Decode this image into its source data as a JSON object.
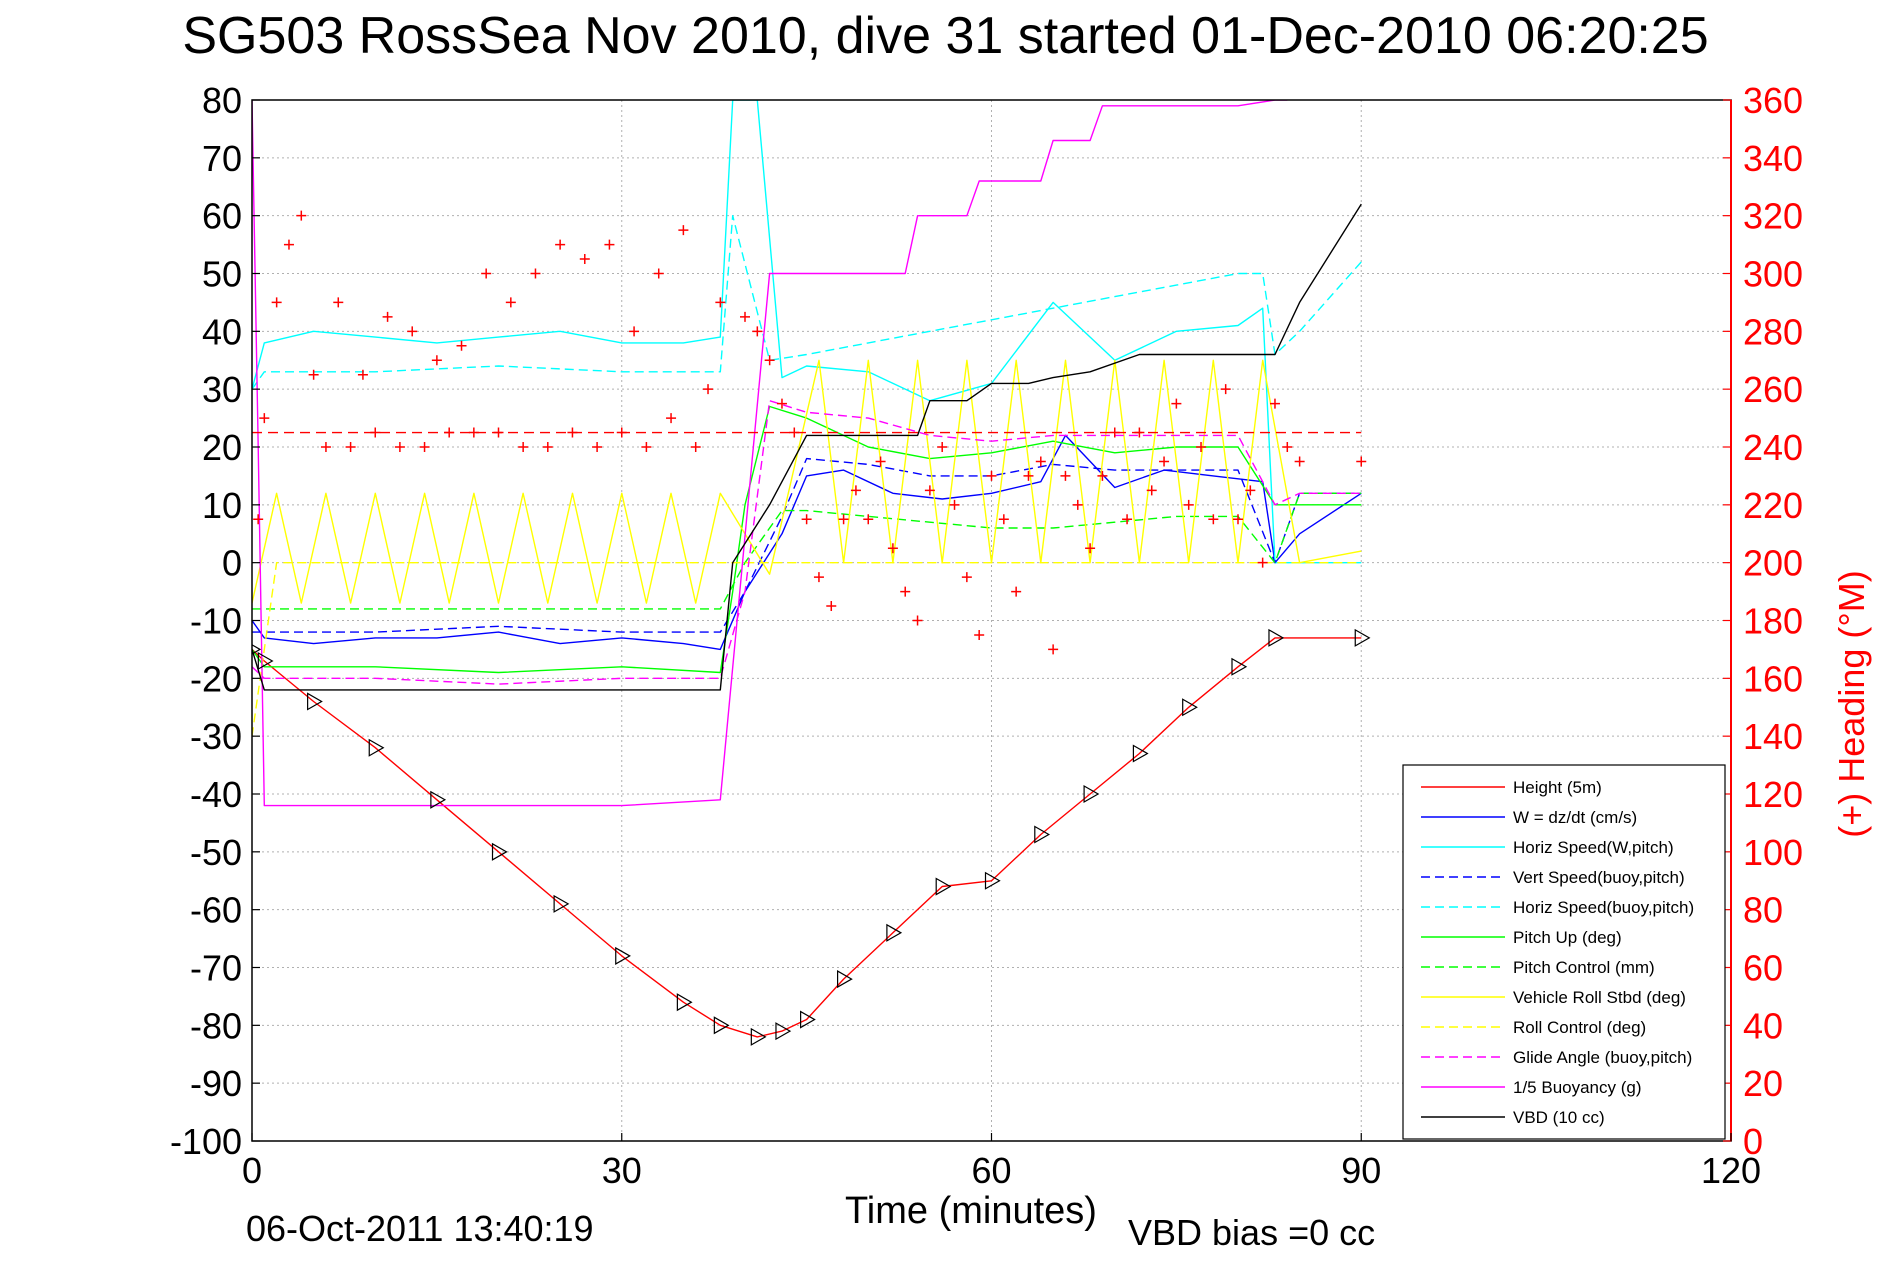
{
  "title": "SG503 RossSea Nov 2010, dive 31 started 01-Dec-2010 06:20:25",
  "footer": {
    "timestamp": "06-Oct-2011 13:40:19",
    "vbd_bias": "VBD bias =0 cc"
  },
  "colors": {
    "red": "#ff0000",
    "blue": "#0000ff",
    "cyan": "#00ffff",
    "green": "#00ff00",
    "yellow": "#ffff00",
    "magenta": "#ff00ff",
    "black": "#000000"
  },
  "chart_data": {
    "type": "line",
    "title": "SG503 RossSea Nov 2010, dive 31 started 01-Dec-2010 06:20:25",
    "xlabel": "Time (minutes)",
    "ylabel": "",
    "ylabel_right": "(+) Heading (°M)",
    "xlim": [
      0,
      120
    ],
    "ylim": [
      -100,
      80
    ],
    "ylim_right": [
      0,
      360
    ],
    "xticks": [
      0,
      30,
      60,
      90,
      120
    ],
    "yticks": [
      80,
      70,
      60,
      50,
      40,
      30,
      20,
      10,
      0,
      -10,
      -20,
      -30,
      -40,
      -50,
      -60,
      -70,
      -80,
      -90,
      -100
    ],
    "yticks_right": [
      360,
      340,
      320,
      300,
      280,
      260,
      240,
      220,
      200,
      180,
      160,
      140,
      120,
      100,
      80,
      60,
      40,
      20,
      0
    ],
    "grid": true,
    "legend_position": "bottom-right",
    "series": [
      {
        "name": "Height (5m)",
        "color": "#ff0000",
        "dash": "solid",
        "x": [
          0,
          1,
          5,
          10,
          15,
          20,
          25,
          30,
          35,
          38,
          41,
          43,
          45,
          48,
          52,
          56,
          60,
          64,
          68,
          72,
          76,
          80,
          83,
          90
        ],
        "y": [
          -15,
          -17,
          -24,
          -32,
          -41,
          -50,
          -59,
          -68,
          -76,
          -80,
          -82,
          -81,
          -79,
          -72,
          -64,
          -56,
          -55,
          -47,
          -40,
          -33,
          -25,
          -18,
          -13,
          -13
        ]
      },
      {
        "name": "W = dz/dt (cm/s)",
        "color": "#0000ff",
        "dash": "solid",
        "x": [
          0,
          1,
          5,
          10,
          15,
          20,
          25,
          30,
          35,
          38,
          40,
          43,
          45,
          48,
          52,
          56,
          60,
          64,
          66,
          70,
          74,
          78,
          82,
          83,
          85,
          90
        ],
        "y": [
          -10,
          -13,
          -14,
          -13,
          -13,
          -12,
          -14,
          -13,
          -14,
          -15,
          -5,
          5,
          15,
          16,
          12,
          11,
          12,
          14,
          22,
          13,
          16,
          15,
          14,
          0,
          5,
          12
        ]
      },
      {
        "name": "Horiz Speed(W,pitch)",
        "color": "#00ffff",
        "dash": "solid",
        "x": [
          0,
          1,
          5,
          10,
          15,
          20,
          25,
          30,
          35,
          38,
          39,
          41,
          43,
          45,
          50,
          55,
          60,
          65,
          70,
          75,
          80,
          82,
          83,
          85,
          90
        ],
        "y": [
          30,
          38,
          40,
          39,
          38,
          39,
          40,
          38,
          38,
          39,
          80,
          80,
          32,
          34,
          33,
          28,
          31,
          45,
          35,
          40,
          41,
          44,
          0,
          0,
          0
        ]
      },
      {
        "name": "Vert Speed(buoy,pitch)",
        "color": "#0000ff",
        "dash": "dashed",
        "x": [
          0,
          1,
          10,
          20,
          30,
          38,
          40,
          43,
          45,
          50,
          55,
          60,
          65,
          70,
          75,
          80,
          83,
          85,
          90
        ],
        "y": [
          -12,
          -12,
          -12,
          -11,
          -12,
          -12,
          -5,
          8,
          18,
          17,
          15,
          15,
          17,
          16,
          16,
          16,
          0,
          12,
          12
        ]
      },
      {
        "name": "Horiz Speed(buoy,pitch)",
        "color": "#00ffff",
        "dash": "dashed",
        "x": [
          0,
          1,
          10,
          20,
          30,
          38,
          39,
          42,
          45,
          50,
          55,
          60,
          65,
          70,
          75,
          80,
          82,
          83,
          85,
          90
        ],
        "y": [
          30,
          33,
          33,
          34,
          33,
          33,
          60,
          35,
          36,
          38,
          40,
          42,
          44,
          46,
          48,
          50,
          50,
          36,
          40,
          52
        ]
      },
      {
        "name": "Pitch Up (deg)",
        "color": "#00ff00",
        "dash": "solid",
        "x": [
          0,
          1,
          10,
          20,
          30,
          38,
          39,
          40,
          42,
          45,
          50,
          55,
          60,
          65,
          70,
          75,
          80,
          83,
          85,
          90
        ],
        "y": [
          -15,
          -18,
          -18,
          -19,
          -18,
          -19,
          -5,
          10,
          27,
          25,
          20,
          18,
          19,
          21,
          19,
          20,
          20,
          10,
          10,
          10
        ]
      },
      {
        "name": "Pitch Control (mm)",
        "color": "#00ff00",
        "dash": "dashed",
        "x": [
          0,
          1,
          10,
          20,
          30,
          38,
          40,
          43,
          45,
          55,
          60,
          65,
          70,
          75,
          80,
          83,
          85,
          90
        ],
        "y": [
          -8,
          -8,
          -8,
          -8,
          -8,
          -8,
          0,
          9,
          9,
          7,
          6,
          6,
          7,
          8,
          8,
          0,
          12,
          12
        ]
      },
      {
        "name": "Vehicle Roll Stbd (deg)",
        "color": "#ffff00",
        "dash": "solid",
        "x": [
          0,
          2,
          4,
          6,
          8,
          10,
          12,
          14,
          16,
          18,
          20,
          22,
          24,
          26,
          28,
          30,
          32,
          34,
          36,
          38,
          42,
          46,
          48,
          50,
          52,
          54,
          56,
          58,
          60,
          62,
          64,
          66,
          68,
          70,
          72,
          74,
          76,
          78,
          80,
          82,
          85,
          90
        ],
        "y": [
          -7,
          12,
          -7,
          12,
          -7,
          12,
          -7,
          12,
          -7,
          12,
          -7,
          12,
          -7,
          12,
          -7,
          12,
          -7,
          12,
          -7,
          12,
          -2,
          35,
          0,
          35,
          0,
          35,
          0,
          35,
          0,
          35,
          0,
          35,
          0,
          35,
          0,
          35,
          0,
          35,
          0,
          35,
          0,
          2
        ]
      },
      {
        "name": "Roll Control (deg)",
        "color": "#ffff00",
        "dash": "dashed",
        "x": [
          0,
          2,
          10,
          20,
          30,
          38,
          45,
          60,
          75,
          83,
          85,
          90
        ],
        "y": [
          -30,
          0,
          0,
          0,
          0,
          0,
          0,
          0,
          0,
          0,
          0,
          0
        ]
      },
      {
        "name": "Glide Angle (buoy,pitch)",
        "color": "#ff00ff",
        "dash": "dashed",
        "x": [
          0,
          1,
          10,
          20,
          30,
          38,
          40,
          42,
          45,
          50,
          55,
          60,
          65,
          70,
          75,
          80,
          83,
          85,
          90
        ],
        "y": [
          -18,
          -20,
          -20,
          -21,
          -20,
          -20,
          -5,
          28,
          26,
          25,
          22,
          21,
          22,
          22,
          22,
          22,
          10,
          12,
          12
        ]
      },
      {
        "name": "1/5 Buoyancy (g)",
        "color": "#ff00ff",
        "dash": "solid",
        "x": [
          0,
          0.5,
          1,
          10,
          20,
          30,
          38,
          42,
          45,
          50,
          53,
          54,
          58,
          59,
          64,
          65,
          68,
          69,
          74,
          75,
          80,
          83,
          84
        ],
        "y": [
          80,
          20,
          -42,
          -42,
          -42,
          -42,
          -41,
          50,
          50,
          50,
          50,
          60,
          60,
          66,
          66,
          73,
          73,
          79,
          79,
          79,
          79,
          80,
          80
        ]
      },
      {
        "name": "VBD (10 cc)",
        "color": "#000000",
        "dash": "solid",
        "x": [
          0,
          1,
          10,
          20,
          30,
          38,
          39,
          42,
          45,
          50,
          54,
          55,
          58,
          60,
          63,
          65,
          68,
          72,
          82,
          83,
          85,
          90
        ],
        "y": [
          -15,
          -22,
          -22,
          -22,
          -22,
          -22,
          0,
          10,
          22,
          22,
          22,
          28,
          28,
          31,
          31,
          32,
          33,
          36,
          36,
          36,
          45,
          62
        ]
      }
    ],
    "heading": {
      "name": "(+) Heading (°M)",
      "axis": "right",
      "marker": "+",
      "color": "#ff0000",
      "mean": 245,
      "x": [
        0.5,
        1,
        2,
        3,
        4,
        5,
        6,
        7,
        8,
        9,
        10,
        11,
        12,
        13,
        14,
        15,
        16,
        17,
        18,
        19,
        20,
        21,
        22,
        23,
        24,
        25,
        26,
        27,
        28,
        29,
        30,
        31,
        32,
        33,
        34,
        35,
        36,
        37,
        38,
        40,
        41,
        42,
        43,
        44,
        45,
        46,
        47,
        48,
        49,
        50,
        51,
        52,
        53,
        54,
        55,
        56,
        57,
        58,
        59,
        60,
        61,
        62,
        63,
        64,
        65,
        66,
        67,
        68,
        69,
        70,
        71,
        72,
        73,
        74,
        75,
        76,
        77,
        78,
        79,
        80,
        81,
        82,
        83,
        84,
        85,
        90
      ],
      "y": [
        215,
        250,
        290,
        310,
        320,
        265,
        240,
        290,
        240,
        265,
        245,
        285,
        240,
        280,
        240,
        270,
        245,
        275,
        245,
        300,
        245,
        290,
        240,
        300,
        240,
        310,
        245,
        305,
        240,
        310,
        245,
        280,
        240,
        300,
        250,
        315,
        240,
        260,
        290,
        285,
        280,
        270,
        255,
        245,
        215,
        195,
        185,
        215,
        225,
        215,
        235,
        205,
        190,
        180,
        225,
        240,
        220,
        195,
        175,
        230,
        215,
        190,
        230,
        235,
        170,
        230,
        220,
        205,
        230,
        245,
        215,
        245,
        225,
        235,
        255,
        220,
        240,
        215,
        260,
        215,
        225,
        200,
        255,
        240,
        235,
        235
      ]
    }
  }
}
